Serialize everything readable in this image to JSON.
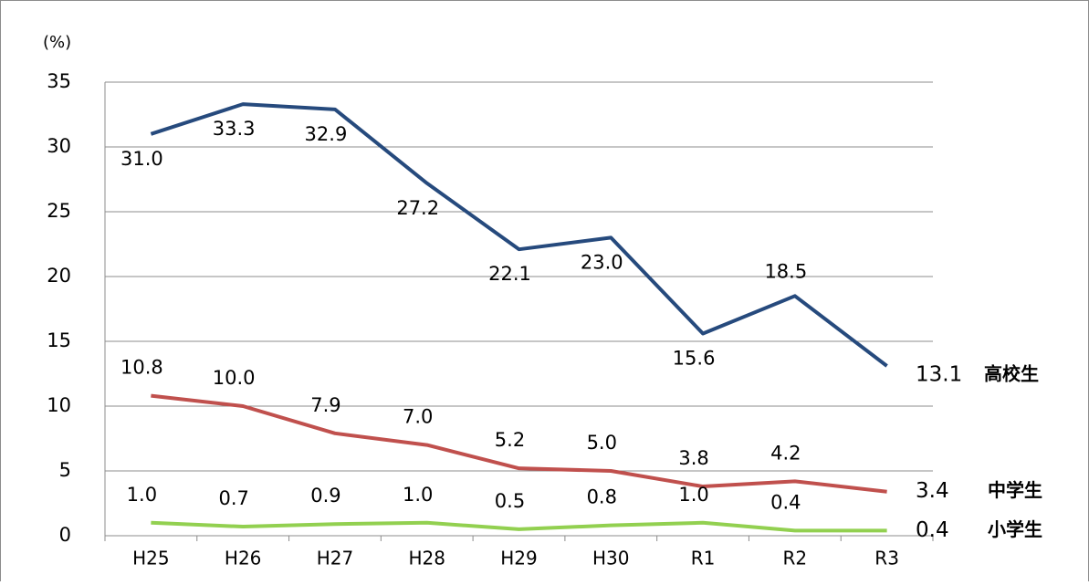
{
  "chart_data": {
    "type": "line",
    "y_label": "(%)",
    "categories": [
      "H25",
      "H26",
      "H27",
      "H28",
      "H29",
      "H30",
      "R1",
      "R2",
      "R3"
    ],
    "series": [
      {
        "name": "高校生",
        "color": "#264a7d",
        "values": [
          31,
          33.3,
          32.9,
          27.2,
          22.1,
          23,
          15.6,
          18.5,
          13.1
        ],
        "value_labels": [
          "31.0",
          "33.3",
          "32.9",
          "27.2",
          "22.1",
          "23.0",
          "15.6",
          "18.5",
          "13.1"
        ]
      },
      {
        "name": "中学生",
        "color": "#c0504d",
        "values": [
          10.8,
          10,
          7.9,
          7,
          5.2,
          5,
          3.8,
          4.2,
          3.4
        ],
        "value_labels": [
          "10.8",
          "10.0",
          "7.9",
          "7.0",
          "5.2",
          "5.0",
          "3.8",
          "4.2",
          "3.4"
        ]
      },
      {
        "name": "小学生",
        "color": "#92d050",
        "values": [
          1,
          0.7,
          0.9,
          1,
          0.5,
          0.8,
          1,
          0.4,
          0.4
        ],
        "value_labels": [
          "1.0",
          "0.7",
          "0.9",
          "1.0",
          "0.5",
          "0.8",
          "1.0",
          "0.4",
          "0.4"
        ]
      }
    ],
    "ylim": [
      0,
      35
    ],
    "yticks": [
      0,
      5,
      10,
      15,
      20,
      25,
      30,
      35
    ],
    "grid": true
  }
}
